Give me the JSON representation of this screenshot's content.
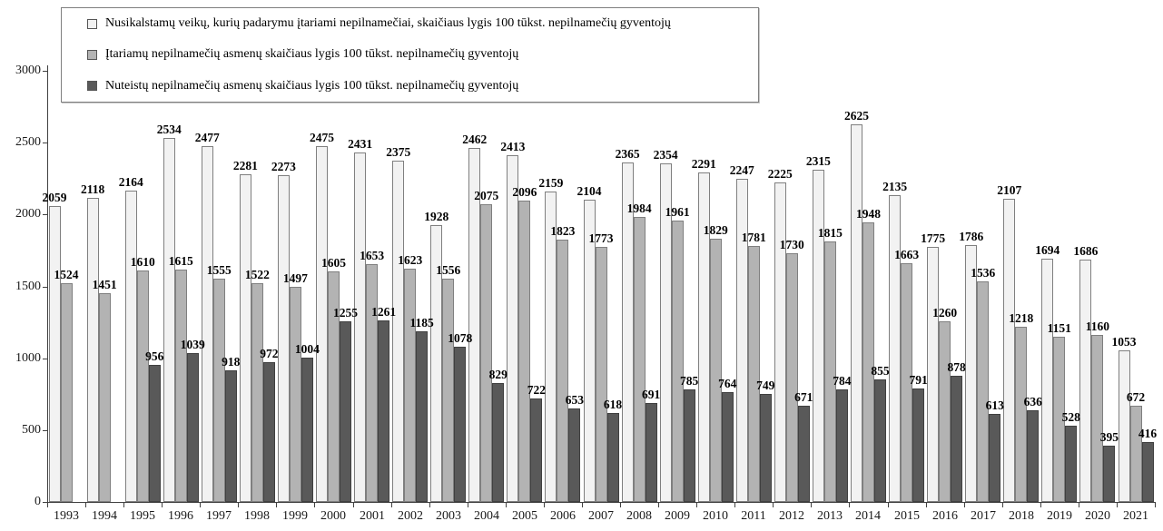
{
  "chart_data": {
    "type": "bar",
    "categories": [
      "1993",
      "1994",
      "1995",
      "1996",
      "1997",
      "1998",
      "1999",
      "2000",
      "2001",
      "2002",
      "2003",
      "2004",
      "2005",
      "2006",
      "2007",
      "2008",
      "2009",
      "2010",
      "2011",
      "2012",
      "2013",
      "2014",
      "2015",
      "2016",
      "2017",
      "2018",
      "2019",
      "2020",
      "2021"
    ],
    "series": [
      {
        "name": "Nusikalstamų veikų, kurių padarymu įtariami nepilnamečiai, skaičiaus lygis 100 tūkst. nepilnamečių gyventojų",
        "color": "#f2f2f2",
        "border_color": "#7f7f7f",
        "values": [
          2059,
          2118,
          2164,
          2534,
          2477,
          2281,
          2273,
          2475,
          2431,
          2375,
          1928,
          2462,
          2413,
          2159,
          2104,
          2365,
          2354,
          2291,
          2247,
          2225,
          2315,
          2625,
          2135,
          1775,
          1786,
          2107,
          1694,
          1686,
          1053
        ]
      },
      {
        "name": "Įtariamų nepilnamečių asmenų skaičiaus lygis 100 tūkst. nepilnamečių gyventojų",
        "color": "#b3b3b3",
        "border_color": "#7f7f7f",
        "values": [
          1524,
          1451,
          1610,
          1615,
          1555,
          1522,
          1497,
          1605,
          1653,
          1623,
          1556,
          2075,
          2096,
          1823,
          1773,
          1984,
          1961,
          1829,
          1781,
          1730,
          1815,
          1948,
          1663,
          1260,
          1536,
          1218,
          1151,
          1160,
          672
        ]
      },
      {
        "name": "Nuteistų nepilnamečių asmenų skaičiaus lygis 100 tūkst. nepilnamečių gyventojų",
        "color": "#595959",
        "border_color": "#404040",
        "values": [
          null,
          null,
          956,
          1039,
          918,
          972,
          1004,
          1255,
          1261,
          1185,
          1078,
          829,
          722,
          653,
          618,
          691,
          785,
          764,
          749,
          671,
          784,
          855,
          791,
          878,
          613,
          636,
          528,
          395,
          416
        ]
      }
    ],
    "ylim": [
      0,
      3000
    ],
    "yticks": [
      0,
      500,
      1000,
      1500,
      2000,
      2500,
      3000
    ],
    "grid": false,
    "legend_position": "top-left",
    "value_labels": true
  }
}
